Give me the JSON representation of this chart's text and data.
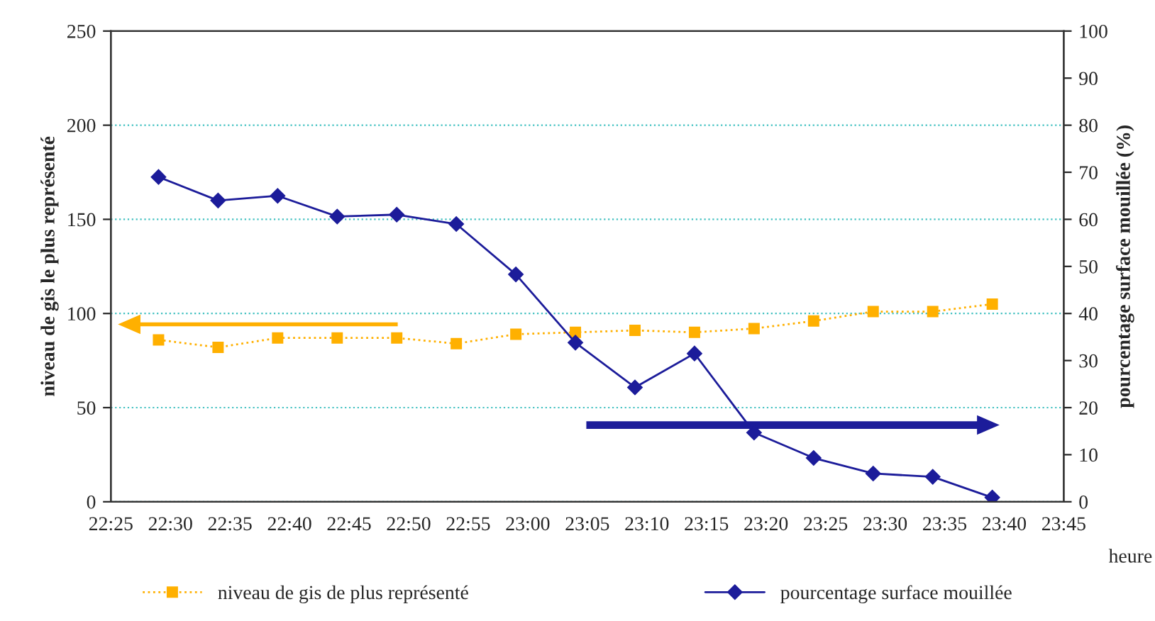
{
  "chart_data": {
    "type": "line",
    "xlabel": "heure",
    "ylabel": "niveau de gis le plus représenté",
    "y2label": "pourcentage surface mouillée (%)",
    "x": [
      22.483333,
      22.566667,
      22.65,
      22.733333,
      22.816667,
      22.9,
      22.983333,
      23.066667,
      23.15,
      23.233333,
      23.316667,
      23.4,
      23.483333,
      23.566667,
      23.65
    ],
    "series": [
      {
        "name": "niveau de gis de plus représenté",
        "color": "#ffb000",
        "marker": "square",
        "line_style": "dotted",
        "values": [
          86,
          82,
          87,
          87,
          87,
          84,
          89,
          90,
          91,
          90,
          92,
          96,
          101,
          101,
          105
        ]
      },
      {
        "name": "pourcentage surface mouillée",
        "color": "#1c1c9a",
        "marker": "diamond",
        "line_style": "solid",
        "axis": "y2",
        "values": [
          69,
          64,
          65,
          60.6,
          61,
          59,
          48.3,
          33.8,
          24.3,
          31.5,
          14.7,
          9.3,
          6,
          5.3,
          0.9
        ]
      }
    ],
    "xlim": [
      22.416667,
      23.75
    ],
    "xticks": [
      {
        "value": 22.416667,
        "label": "22:25"
      },
      {
        "value": 22.5,
        "label": "22:30"
      },
      {
        "value": 22.583333,
        "label": "22:35"
      },
      {
        "value": 22.666667,
        "label": "22:40"
      },
      {
        "value": 22.75,
        "label": "22:45"
      },
      {
        "value": 22.833333,
        "label": "22:50"
      },
      {
        "value": 22.916667,
        "label": "22:55"
      },
      {
        "value": 23.0,
        "label": "23:00"
      },
      {
        "value": 23.083333,
        "label": "23:05"
      },
      {
        "value": 23.166667,
        "label": "23:10"
      },
      {
        "value": 23.25,
        "label": "23:15"
      },
      {
        "value": 23.333333,
        "label": "23:20"
      },
      {
        "value": 23.416667,
        "label": "23:25"
      },
      {
        "value": 23.5,
        "label": "23:30"
      },
      {
        "value": 23.583333,
        "label": "23:35"
      },
      {
        "value": 23.666667,
        "label": "23:40"
      },
      {
        "value": 23.75,
        "label": "23:45"
      }
    ],
    "ylim": [
      0,
      250
    ],
    "yticks": [
      0,
      50,
      100,
      150,
      200,
      250
    ],
    "y2lim": [
      0,
      100
    ],
    "y2ticks": [
      0,
      10,
      20,
      30,
      40,
      50,
      60,
      70,
      80,
      90,
      100
    ],
    "grid": "y",
    "legend": "bottom"
  }
}
